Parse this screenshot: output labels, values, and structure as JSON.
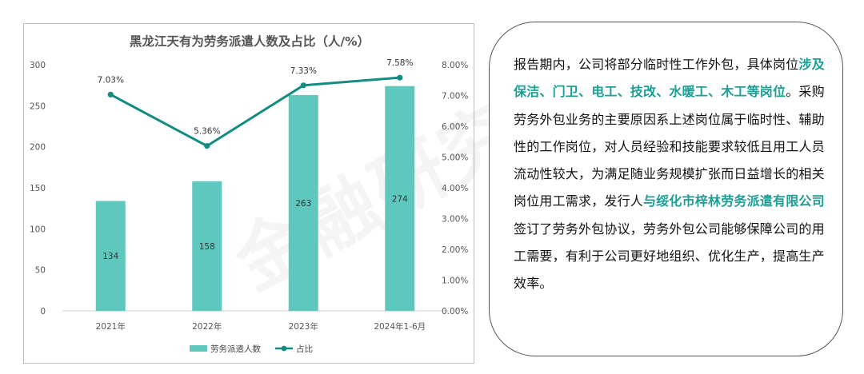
{
  "chart_data": {
    "type": "bar+line",
    "title": "黑龙江天有为劳务派遣人数及占比（人/%）",
    "categories": [
      "2021年",
      "2022年",
      "2023年",
      "2024年1-6月"
    ],
    "series": [
      {
        "name": "劳务派遣人数",
        "type": "bar",
        "axis": "left",
        "values": [
          134,
          158,
          263,
          274
        ],
        "labels": [
          "134",
          "158",
          "263",
          "274"
        ],
        "color": "#5ec8be"
      },
      {
        "name": "占比",
        "type": "line",
        "axis": "right",
        "values": [
          7.03,
          5.36,
          7.33,
          7.58
        ],
        "labels": [
          "7.03%",
          "5.36%",
          "7.33%",
          "7.58%"
        ],
        "color": "#128c81"
      }
    ],
    "y_left": {
      "min": 0,
      "max": 300,
      "ticks": [
        "0",
        "50",
        "100",
        "150",
        "200",
        "250",
        "300"
      ]
    },
    "y_right": {
      "min": 0,
      "max": 8,
      "ticks": [
        "0.00%",
        "1.00%",
        "2.00%",
        "3.00%",
        "4.00%",
        "5.00%",
        "6.00%",
        "7.00%",
        "8.00%"
      ]
    },
    "grid": false,
    "legend": "bottom"
  },
  "watermark": "金融研究院",
  "text_panel": {
    "paragraph": [
      {
        "text": "报告期内，公司将部分临时性工作外包，具体岗位",
        "highlight": false
      },
      {
        "text": "涉及保洁、门卫、电工、技改、水暖工、木工等岗位",
        "highlight": true
      },
      {
        "text": "。采购劳务外包业务的主要原因系上述岗位属于临时性、辅助性的工作岗位，对人员经验和技能要求较低且用工人员流动性较大，为满足随业务规模扩张而日益增长的相关岗位用工需求，发行人",
        "highlight": false
      },
      {
        "text": "与绥化市梓林劳务派遣有限公司",
        "highlight": true
      },
      {
        "text": "签订了劳务外包协议，劳务外包公司能够保障公司的用工需要，有利于公司更好地组织、优化生产，提高生产效率。",
        "highlight": false
      }
    ]
  }
}
